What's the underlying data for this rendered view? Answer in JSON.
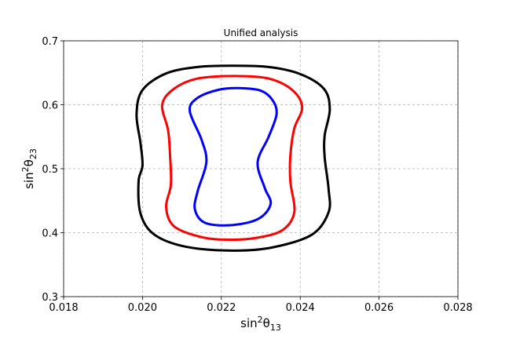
{
  "chart_data": {
    "type": "line",
    "title": "Unified analysis",
    "xlabel": {
      "base": "sin",
      "sup": "2",
      "greek": "θ",
      "sub": "13"
    },
    "ylabel": {
      "base": "sin",
      "sup": "2",
      "greek": "θ",
      "sub": "23"
    },
    "xlim": [
      0.018,
      0.028
    ],
    "ylim": [
      0.3,
      0.7
    ],
    "xticks": [
      "0.018",
      "0.020",
      "0.022",
      "0.024",
      "0.026",
      "0.028"
    ],
    "yticks": [
      "0.3",
      "0.4",
      "0.5",
      "0.6",
      "0.7"
    ],
    "grid": true,
    "series": [
      {
        "color": "#000000",
        "points": [
          [
            0.02225,
            0.661
          ],
          [
            0.0232,
            0.659
          ],
          [
            0.024,
            0.648
          ],
          [
            0.0246,
            0.625
          ],
          [
            0.02475,
            0.593
          ],
          [
            0.02462,
            0.552
          ],
          [
            0.02462,
            0.518
          ],
          [
            0.02472,
            0.468
          ],
          [
            0.02472,
            0.432
          ],
          [
            0.0243,
            0.397
          ],
          [
            0.0233,
            0.377
          ],
          [
            0.0223,
            0.372
          ],
          [
            0.0211,
            0.378
          ],
          [
            0.0203,
            0.397
          ],
          [
            0.01995,
            0.43
          ],
          [
            0.0199,
            0.48
          ],
          [
            0.02,
            0.505
          ],
          [
            0.01995,
            0.54
          ],
          [
            0.01985,
            0.585
          ],
          [
            0.02,
            0.623
          ],
          [
            0.0206,
            0.649
          ],
          [
            0.0214,
            0.659
          ],
          [
            0.02225,
            0.661
          ]
        ]
      },
      {
        "color": "#ff0000",
        "points": [
          [
            0.02235,
            0.645
          ],
          [
            0.0232,
            0.641
          ],
          [
            0.0238,
            0.623
          ],
          [
            0.02405,
            0.596
          ],
          [
            0.02385,
            0.563
          ],
          [
            0.02375,
            0.52
          ],
          [
            0.02375,
            0.48
          ],
          [
            0.02385,
            0.432
          ],
          [
            0.02355,
            0.404
          ],
          [
            0.0229,
            0.392
          ],
          [
            0.0222,
            0.389
          ],
          [
            0.0215,
            0.393
          ],
          [
            0.0208,
            0.41
          ],
          [
            0.0206,
            0.44
          ],
          [
            0.02072,
            0.475
          ],
          [
            0.0207,
            0.52
          ],
          [
            0.02065,
            0.56
          ],
          [
            0.0205,
            0.6
          ],
          [
            0.0208,
            0.625
          ],
          [
            0.0214,
            0.641
          ],
          [
            0.02235,
            0.645
          ]
        ]
      },
      {
        "color": "#0000ff",
        "points": [
          [
            0.02242,
            0.626
          ],
          [
            0.023,
            0.622
          ],
          [
            0.0233,
            0.607
          ],
          [
            0.0234,
            0.585
          ],
          [
            0.0232,
            0.55
          ],
          [
            0.02292,
            0.51
          ],
          [
            0.0231,
            0.47
          ],
          [
            0.02325,
            0.445
          ],
          [
            0.02295,
            0.422
          ],
          [
            0.0223,
            0.412
          ],
          [
            0.0216,
            0.415
          ],
          [
            0.02133,
            0.436
          ],
          [
            0.0214,
            0.465
          ],
          [
            0.02162,
            0.51
          ],
          [
            0.0215,
            0.545
          ],
          [
            0.0212,
            0.59
          ],
          [
            0.02138,
            0.61
          ],
          [
            0.0219,
            0.623
          ],
          [
            0.02242,
            0.626
          ]
        ]
      }
    ]
  }
}
